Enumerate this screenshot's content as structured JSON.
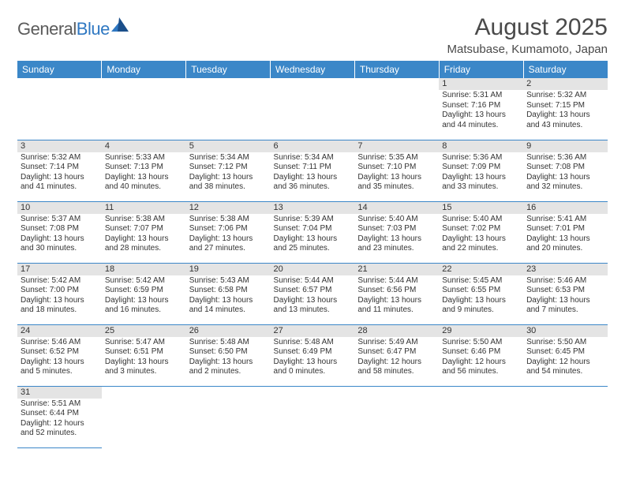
{
  "logo": {
    "general": "General",
    "blue": "Blue"
  },
  "header": {
    "month_title": "August 2025",
    "location": "Matsubase, Kumamoto, Japan"
  },
  "colors": {
    "header_bg": "#3b87c8",
    "header_text": "#ffffff",
    "day_strip": "#e4e4e4",
    "rule": "#3b87c8",
    "body_text": "#333333",
    "logo_general": "#5b5b5b",
    "logo_blue": "#2f78c2",
    "logo_shape_dark": "#1b4f8a"
  },
  "weekdays": [
    "Sunday",
    "Monday",
    "Tuesday",
    "Wednesday",
    "Thursday",
    "Friday",
    "Saturday"
  ],
  "days": {
    "1": {
      "sunrise": "Sunrise: 5:31 AM",
      "sunset": "Sunset: 7:16 PM",
      "day1": "Daylight: 13 hours",
      "day2": "and 44 minutes."
    },
    "2": {
      "sunrise": "Sunrise: 5:32 AM",
      "sunset": "Sunset: 7:15 PM",
      "day1": "Daylight: 13 hours",
      "day2": "and 43 minutes."
    },
    "3": {
      "sunrise": "Sunrise: 5:32 AM",
      "sunset": "Sunset: 7:14 PM",
      "day1": "Daylight: 13 hours",
      "day2": "and 41 minutes."
    },
    "4": {
      "sunrise": "Sunrise: 5:33 AM",
      "sunset": "Sunset: 7:13 PM",
      "day1": "Daylight: 13 hours",
      "day2": "and 40 minutes."
    },
    "5": {
      "sunrise": "Sunrise: 5:34 AM",
      "sunset": "Sunset: 7:12 PM",
      "day1": "Daylight: 13 hours",
      "day2": "and 38 minutes."
    },
    "6": {
      "sunrise": "Sunrise: 5:34 AM",
      "sunset": "Sunset: 7:11 PM",
      "day1": "Daylight: 13 hours",
      "day2": "and 36 minutes."
    },
    "7": {
      "sunrise": "Sunrise: 5:35 AM",
      "sunset": "Sunset: 7:10 PM",
      "day1": "Daylight: 13 hours",
      "day2": "and 35 minutes."
    },
    "8": {
      "sunrise": "Sunrise: 5:36 AM",
      "sunset": "Sunset: 7:09 PM",
      "day1": "Daylight: 13 hours",
      "day2": "and 33 minutes."
    },
    "9": {
      "sunrise": "Sunrise: 5:36 AM",
      "sunset": "Sunset: 7:08 PM",
      "day1": "Daylight: 13 hours",
      "day2": "and 32 minutes."
    },
    "10": {
      "sunrise": "Sunrise: 5:37 AM",
      "sunset": "Sunset: 7:08 PM",
      "day1": "Daylight: 13 hours",
      "day2": "and 30 minutes."
    },
    "11": {
      "sunrise": "Sunrise: 5:38 AM",
      "sunset": "Sunset: 7:07 PM",
      "day1": "Daylight: 13 hours",
      "day2": "and 28 minutes."
    },
    "12": {
      "sunrise": "Sunrise: 5:38 AM",
      "sunset": "Sunset: 7:06 PM",
      "day1": "Daylight: 13 hours",
      "day2": "and 27 minutes."
    },
    "13": {
      "sunrise": "Sunrise: 5:39 AM",
      "sunset": "Sunset: 7:04 PM",
      "day1": "Daylight: 13 hours",
      "day2": "and 25 minutes."
    },
    "14": {
      "sunrise": "Sunrise: 5:40 AM",
      "sunset": "Sunset: 7:03 PM",
      "day1": "Daylight: 13 hours",
      "day2": "and 23 minutes."
    },
    "15": {
      "sunrise": "Sunrise: 5:40 AM",
      "sunset": "Sunset: 7:02 PM",
      "day1": "Daylight: 13 hours",
      "day2": "and 22 minutes."
    },
    "16": {
      "sunrise": "Sunrise: 5:41 AM",
      "sunset": "Sunset: 7:01 PM",
      "day1": "Daylight: 13 hours",
      "day2": "and 20 minutes."
    },
    "17": {
      "sunrise": "Sunrise: 5:42 AM",
      "sunset": "Sunset: 7:00 PM",
      "day1": "Daylight: 13 hours",
      "day2": "and 18 minutes."
    },
    "18": {
      "sunrise": "Sunrise: 5:42 AM",
      "sunset": "Sunset: 6:59 PM",
      "day1": "Daylight: 13 hours",
      "day2": "and 16 minutes."
    },
    "19": {
      "sunrise": "Sunrise: 5:43 AM",
      "sunset": "Sunset: 6:58 PM",
      "day1": "Daylight: 13 hours",
      "day2": "and 14 minutes."
    },
    "20": {
      "sunrise": "Sunrise: 5:44 AM",
      "sunset": "Sunset: 6:57 PM",
      "day1": "Daylight: 13 hours",
      "day2": "and 13 minutes."
    },
    "21": {
      "sunrise": "Sunrise: 5:44 AM",
      "sunset": "Sunset: 6:56 PM",
      "day1": "Daylight: 13 hours",
      "day2": "and 11 minutes."
    },
    "22": {
      "sunrise": "Sunrise: 5:45 AM",
      "sunset": "Sunset: 6:55 PM",
      "day1": "Daylight: 13 hours",
      "day2": "and 9 minutes."
    },
    "23": {
      "sunrise": "Sunrise: 5:46 AM",
      "sunset": "Sunset: 6:53 PM",
      "day1": "Daylight: 13 hours",
      "day2": "and 7 minutes."
    },
    "24": {
      "sunrise": "Sunrise: 5:46 AM",
      "sunset": "Sunset: 6:52 PM",
      "day1": "Daylight: 13 hours",
      "day2": "and 5 minutes."
    },
    "25": {
      "sunrise": "Sunrise: 5:47 AM",
      "sunset": "Sunset: 6:51 PM",
      "day1": "Daylight: 13 hours",
      "day2": "and 3 minutes."
    },
    "26": {
      "sunrise": "Sunrise: 5:48 AM",
      "sunset": "Sunset: 6:50 PM",
      "day1": "Daylight: 13 hours",
      "day2": "and 2 minutes."
    },
    "27": {
      "sunrise": "Sunrise: 5:48 AM",
      "sunset": "Sunset: 6:49 PM",
      "day1": "Daylight: 13 hours",
      "day2": "and 0 minutes."
    },
    "28": {
      "sunrise": "Sunrise: 5:49 AM",
      "sunset": "Sunset: 6:47 PM",
      "day1": "Daylight: 12 hours",
      "day2": "and 58 minutes."
    },
    "29": {
      "sunrise": "Sunrise: 5:50 AM",
      "sunset": "Sunset: 6:46 PM",
      "day1": "Daylight: 12 hours",
      "day2": "and 56 minutes."
    },
    "30": {
      "sunrise": "Sunrise: 5:50 AM",
      "sunset": "Sunset: 6:45 PM",
      "day1": "Daylight: 12 hours",
      "day2": "and 54 minutes."
    },
    "31": {
      "sunrise": "Sunrise: 5:51 AM",
      "sunset": "Sunset: 6:44 PM",
      "day1": "Daylight: 12 hours",
      "day2": "and 52 minutes."
    }
  },
  "nums": {
    "1": "1",
    "2": "2",
    "3": "3",
    "4": "4",
    "5": "5",
    "6": "6",
    "7": "7",
    "8": "8",
    "9": "9",
    "10": "10",
    "11": "11",
    "12": "12",
    "13": "13",
    "14": "14",
    "15": "15",
    "16": "16",
    "17": "17",
    "18": "18",
    "19": "19",
    "20": "20",
    "21": "21",
    "22": "22",
    "23": "23",
    "24": "24",
    "25": "25",
    "26": "26",
    "27": "27",
    "28": "28",
    "29": "29",
    "30": "30",
    "31": "31"
  }
}
